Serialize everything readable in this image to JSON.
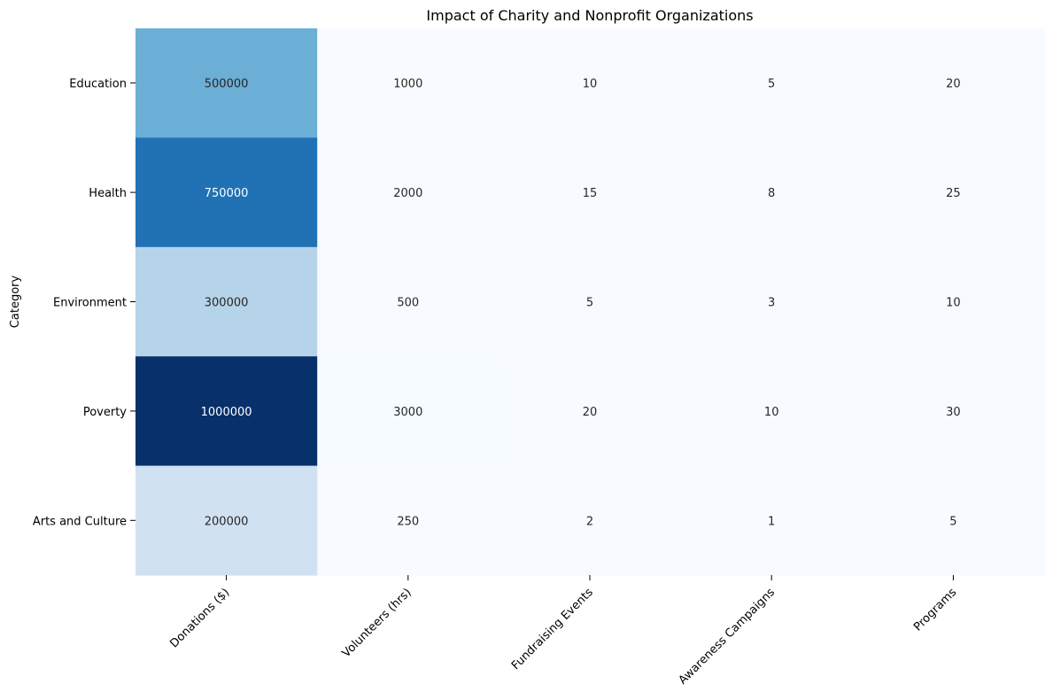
{
  "chart_data": {
    "type": "heatmap",
    "title": "Impact of Charity and Nonprofit Organizations",
    "ylabel": "Category",
    "xlabel": "",
    "colormap": "Blues",
    "colorbar": false,
    "rows": [
      "Education",
      "Health",
      "Environment",
      "Poverty",
      "Arts and Culture"
    ],
    "columns": [
      "Donations ($)",
      "Volunteers (hrs)",
      "Fundraising Events",
      "Awareness Campaigns",
      "Programs"
    ],
    "values": [
      [
        500000,
        1000,
        10,
        5,
        20
      ],
      [
        750000,
        2000,
        15,
        8,
        25
      ],
      [
        300000,
        500,
        5,
        3,
        10
      ],
      [
        1000000,
        3000,
        20,
        10,
        30
      ],
      [
        200000,
        250,
        2,
        1,
        5
      ]
    ],
    "color_range": [
      1,
      1000000
    ]
  }
}
